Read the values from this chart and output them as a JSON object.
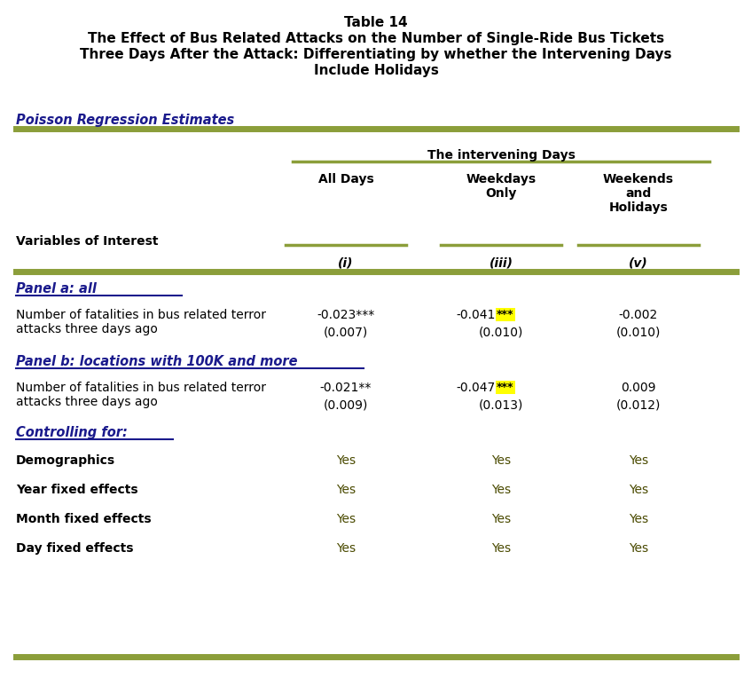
{
  "title_line1": "Table 14",
  "title_line2": "The Effect of Bus Related Attacks on the Number of Single-Ride Bus Tickets",
  "title_line3": "Three Days After the Attack: Differentiating by whether the Intervening Days",
  "title_line4": "Include Holidays",
  "section_label": "Poisson Regression Estimates",
  "col_group_label": "The intervening Days",
  "col_headers": [
    "All Days",
    "Weekdays\nOnly",
    "Weekends\nand\nHolidays"
  ],
  "col_ids": [
    "(i)",
    "(iii)",
    "(v)"
  ],
  "row_label_col": "Variables of Interest",
  "panel_a_label": "Panel a: all",
  "panel_a_row_label": "Number of fatalities in bus related terror\nattacks three days ago",
  "panel_a_vals": [
    "-0.023***",
    "-0.041***",
    "-0.002"
  ],
  "panel_a_se": [
    "(0.007)",
    "(0.010)",
    "(0.010)"
  ],
  "panel_a_highlight_col": 1,
  "panel_b_label": "Panel b: locations with 100K and more",
  "panel_b_row_label": "Number of fatalities in bus related terror\nattacks three days ago",
  "panel_b_vals": [
    "-0.021**",
    "-0.047***",
    "0.009"
  ],
  "panel_b_se": [
    "(0.009)",
    "(0.013)",
    "(0.012)"
  ],
  "panel_b_highlight_col": 1,
  "controlling_label": "Controlling for:",
  "control_rows": [
    "Demographics",
    "Year fixed effects",
    "Month fixed effects",
    "Day fixed effects"
  ],
  "green_color": "#8B9E3A",
  "highlight_yellow": "#FFFF00",
  "bg_color": "#FFFFFF",
  "black": "#000000",
  "navy": "#1a1a8c",
  "olive_text": "#4a4a00",
  "font_size_title": 11,
  "font_size_body": 10,
  "font_size_small": 9.5
}
